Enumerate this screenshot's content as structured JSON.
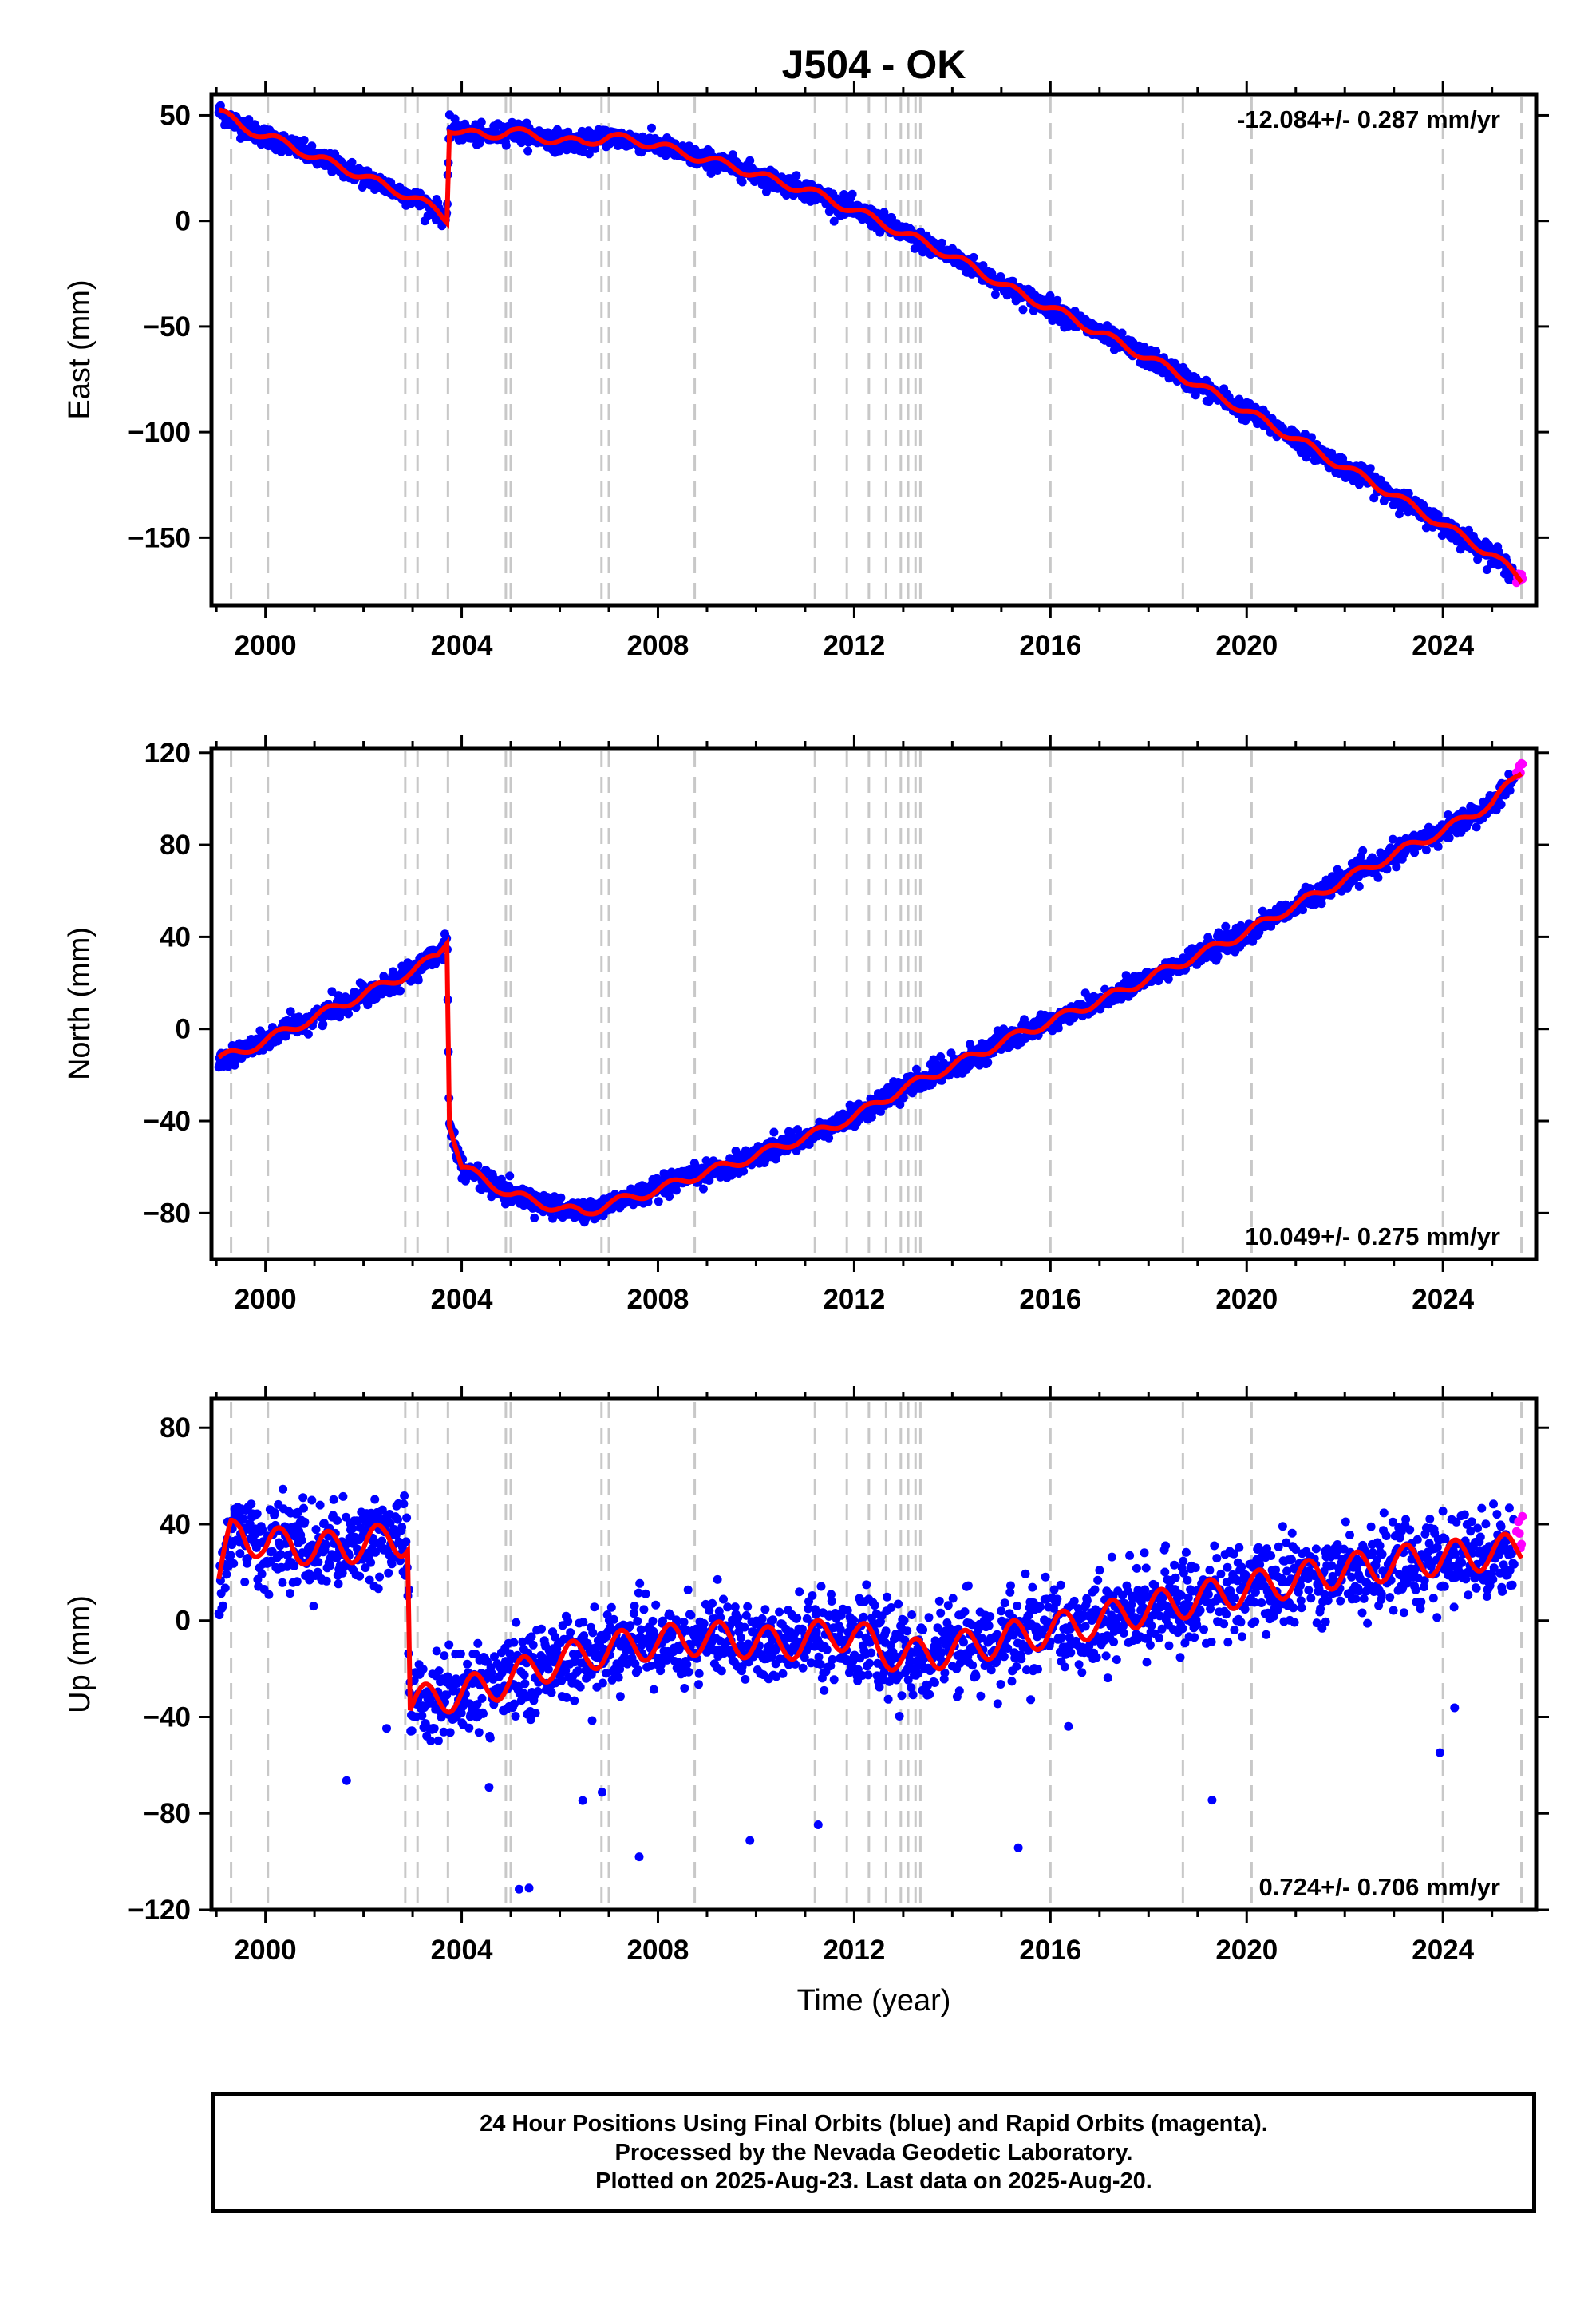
{
  "title": "J504 - OK",
  "xlabel": "Time (year)",
  "footer": {
    "line1": "24 Hour Positions Using Final Orbits (blue) and Rapid Orbits (magenta).",
    "line2": "Processed by the Nevada Geodetic Laboratory.",
    "line3": "Plotted on 2025-Aug-23. Last data on 2025-Aug-20."
  },
  "colors": {
    "final_orbits": "#0000ff",
    "rapid_orbits": "#ff00ff",
    "model": "#ff0000",
    "steps": "#c8c8c8"
  },
  "chart_data": [
    {
      "type": "scatter",
      "panel": "east",
      "ylabel": "East (mm)",
      "xlim": [
        1998.9,
        2025.9
      ],
      "ylim": [
        -182,
        60
      ],
      "xticks": [
        2000,
        2004,
        2008,
        2012,
        2016,
        2020,
        2024
      ],
      "yticks": [
        50,
        0,
        -50,
        -100,
        -150
      ],
      "rate_label": "-12.084+/- 0.287 mm/yr",
      "rate_label_position": "top-right",
      "series": [
        {
          "x": [
            1999.05,
            1999.5,
            2000.0,
            2000.5,
            2001.0,
            2001.5,
            2002.0,
            2002.5,
            2003.0,
            2003.5,
            2003.7,
            2003.75,
            2004.0,
            2004.5,
            2005.0,
            2005.5,
            2006.0,
            2006.5,
            2007.0,
            2007.5,
            2008.0,
            2008.5,
            2009.0,
            2009.5,
            2010.0,
            2010.5,
            2011.0,
            2011.5,
            2012.0,
            2012.5,
            2013.0,
            2013.5,
            2014.0,
            2014.5,
            2015.0,
            2015.5,
            2016.0,
            2016.5,
            2017.0,
            2017.5,
            2018.0,
            2018.5,
            2019.0,
            2019.5,
            2020.0,
            2020.5,
            2021.0,
            2021.5,
            2022.0,
            2022.5,
            2023.0,
            2023.5,
            2024.0,
            2024.5,
            2025.0,
            2025.6
          ],
          "y": [
            52,
            45,
            40,
            36,
            30,
            26,
            21,
            16,
            11,
            5,
            1,
            44,
            42,
            40,
            43,
            40,
            38,
            37,
            40,
            38,
            36,
            32,
            29,
            26,
            22,
            18,
            15,
            10,
            5,
            0,
            -6,
            -11,
            -17,
            -23,
            -30,
            -36,
            -41,
            -47,
            -53,
            -59,
            -65,
            -71,
            -78,
            -84,
            -90,
            -97,
            -103,
            -110,
            -117,
            -123,
            -130,
            -137,
            -144,
            -151,
            -158,
            -170
          ]
        }
      ]
    },
    {
      "type": "scatter",
      "panel": "north",
      "ylabel": "North (mm)",
      "xlim": [
        1998.9,
        2025.9
      ],
      "ylim": [
        -100,
        122
      ],
      "xticks": [
        2000,
        2004,
        2008,
        2012,
        2016,
        2020,
        2024
      ],
      "yticks": [
        120,
        80,
        40,
        0,
        -40,
        -80
      ],
      "rate_label": "10.049+/- 0.275 mm/yr",
      "rate_label_position": "bottom-right",
      "series": [
        {
          "x": [
            1999.05,
            1999.5,
            2000.0,
            2000.5,
            2001.0,
            2001.5,
            2002.0,
            2002.5,
            2003.0,
            2003.5,
            2003.7,
            2003.75,
            2004.0,
            2004.5,
            2005.0,
            2005.5,
            2006.0,
            2006.5,
            2007.0,
            2007.5,
            2008.0,
            2008.5,
            2009.0,
            2009.5,
            2010.0,
            2010.5,
            2011.0,
            2011.5,
            2012.0,
            2012.5,
            2013.0,
            2013.5,
            2014.0,
            2014.5,
            2015.0,
            2015.5,
            2016.0,
            2016.5,
            2017.0,
            2017.5,
            2018.0,
            2018.5,
            2019.0,
            2019.5,
            2020.0,
            2020.5,
            2021.0,
            2021.5,
            2022.0,
            2022.5,
            2023.0,
            2023.5,
            2024.0,
            2024.5,
            2025.0,
            2025.6
          ],
          "y": [
            -13,
            -10,
            -5,
            0,
            5,
            10,
            15,
            20,
            25,
            32,
            39,
            -40,
            -60,
            -66,
            -72,
            -75,
            -78,
            -80,
            -76,
            -73,
            -70,
            -66,
            -62,
            -59,
            -55,
            -51,
            -47,
            -43,
            -38,
            -32,
            -26,
            -21,
            -16,
            -11,
            -6,
            -1,
            3,
            8,
            12,
            17,
            22,
            27,
            32,
            37,
            42,
            48,
            54,
            59,
            65,
            70,
            76,
            81,
            86,
            92,
            98,
            112
          ]
        }
      ]
    },
    {
      "type": "scatter",
      "panel": "up",
      "ylabel": "Up (mm)",
      "xlim": [
        1998.9,
        2025.9
      ],
      "ylim": [
        -120,
        92
      ],
      "xticks": [
        2000,
        2004,
        2008,
        2012,
        2016,
        2020,
        2024
      ],
      "yticks": [
        80,
        40,
        0,
        -40,
        -80,
        -120
      ],
      "rate_label": "0.724+/- 0.706 mm/yr",
      "rate_label_position": "bottom-right",
      "series": [
        {
          "x": [
            1999.05,
            1999.3,
            1999.5,
            2000.0,
            2000.5,
            2001.0,
            2001.5,
            2002.0,
            2002.5,
            2002.9,
            2002.95,
            2003.5,
            2004.0,
            2004.5,
            2005.0,
            2005.5,
            2006.0,
            2006.5,
            2007.0,
            2007.5,
            2008.0,
            2008.5,
            2009.0,
            2009.5,
            2010.0,
            2010.5,
            2011.0,
            2011.5,
            2012.0,
            2012.5,
            2013.0,
            2013.5,
            2014.0,
            2014.5,
            2015.0,
            2015.5,
            2016.0,
            2016.5,
            2017.0,
            2017.5,
            2018.0,
            2018.5,
            2019.0,
            2019.5,
            2020.0,
            2020.5,
            2021.0,
            2021.5,
            2022.0,
            2022.5,
            2023.0,
            2023.5,
            2024.0,
            2024.5,
            2025.0,
            2025.6
          ],
          "y": [
            15,
            35,
            38,
            30,
            33,
            28,
            32,
            30,
            35,
            33,
            -35,
            -32,
            -30,
            -28,
            -24,
            -20,
            -17,
            -14,
            -12,
            -10,
            -9,
            -8,
            -7,
            -8,
            -9,
            -10,
            -8,
            -6,
            -5,
            -12,
            -15,
            -14,
            -12,
            -10,
            -8,
            -6,
            -4,
            -2,
            0,
            3,
            5,
            7,
            9,
            11,
            13,
            15,
            17,
            19,
            21,
            22,
            24,
            25,
            26,
            27,
            28,
            30
          ]
        }
      ]
    }
  ]
}
